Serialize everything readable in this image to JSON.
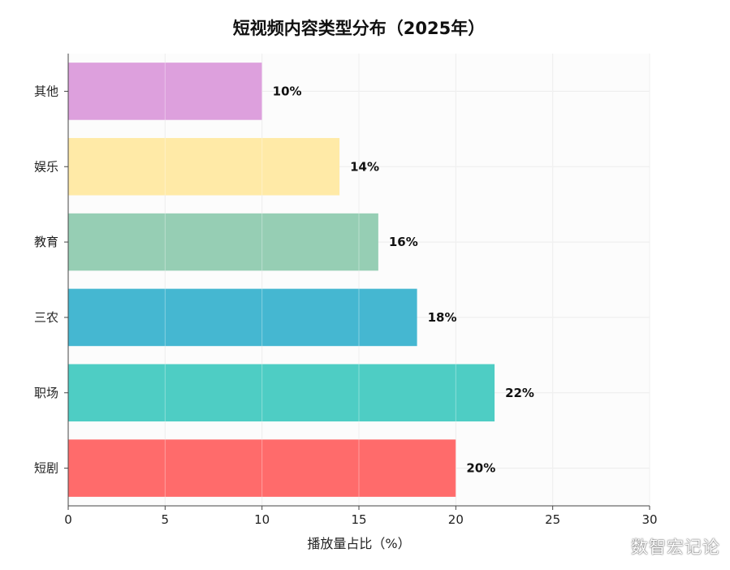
{
  "chart_data": {
    "type": "bar",
    "orientation": "horizontal",
    "title": "短视频内容类型分布（2025年）",
    "xlabel": "播放量占比（%）",
    "ylabel": "",
    "xlim": [
      0,
      30
    ],
    "xticks": [
      0,
      5,
      10,
      15,
      20,
      25,
      30
    ],
    "grid": true,
    "categories": [
      "短剧",
      "职场",
      "三农",
      "教育",
      "娱乐",
      "其他"
    ],
    "values": [
      20,
      22,
      18,
      16,
      14,
      10
    ],
    "value_labels": [
      "20%",
      "22%",
      "18%",
      "16%",
      "14%",
      "10%"
    ],
    "colors": [
      "#ff6b6b",
      "#4ecdc4",
      "#45b7d1",
      "#96ceb4",
      "#ffeaa7",
      "#dda0dd"
    ]
  },
  "watermark": "数智宏记论"
}
